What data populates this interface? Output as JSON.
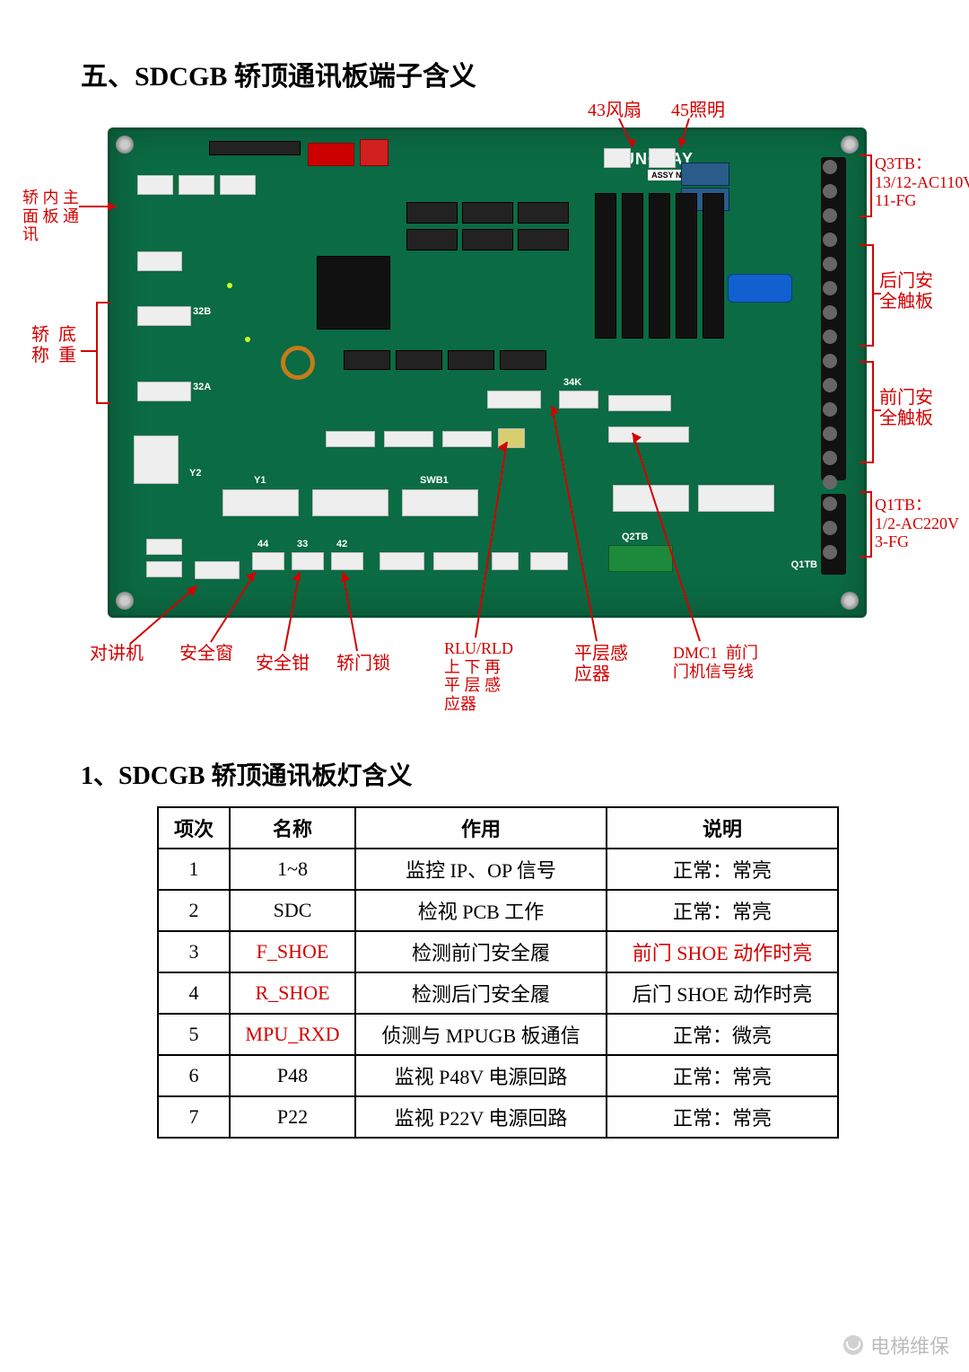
{
  "title": "五、SDCGB 轿顶通讯板端子含义",
  "subtitle": "1、SDCGB 轿顶通讯板灯含义",
  "annotations": {
    "top": {
      "a43": "43风扇",
      "a45": "45照明"
    },
    "left": {
      "nei": "轿 内 主\n面 板 通\n讯",
      "di": "轿  底\n称  重"
    },
    "right": {
      "q3tb": "Q3TB：\n13/12-AC110V\n11-FG",
      "rear": "后门安\n全触板",
      "front": "前门安\n全触板",
      "q1tb": "Q1TB：\n1/2-AC220V\n3-FG"
    },
    "bottom": {
      "intercom": "对讲机",
      "safetywin": "安全窗",
      "safetyclamp": "安全钳",
      "doorlock": "轿门锁",
      "rlu": "RLU/RLD\n上 下 再\n平 层 感\n应器",
      "level": "平层感\n应器",
      "dmc1": "DMC1  前门\n门机信号线"
    }
  },
  "pcb": {
    "brand": "YUNGTAY",
    "silk": {
      "a44": "44",
      "a33": "33",
      "a42": "42",
      "swb1": "SWB1",
      "a34k": "34K",
      "q1tb": "Q1TB",
      "q2tb": "Q2TB",
      "a32a": "32A",
      "a32b": "32B",
      "y1": "Y1",
      "y2": "Y2"
    }
  },
  "table": {
    "columns": [
      "项次",
      "名称",
      "作用",
      "说明"
    ],
    "rows": [
      {
        "n": "1",
        "name": "1~8",
        "use": "监控 IP、OP 信号",
        "desc": "正常：常亮",
        "red": false
      },
      {
        "n": "2",
        "name": "SDC",
        "use": "检视 PCB 工作",
        "desc": "正常：常亮",
        "red": false
      },
      {
        "n": "3",
        "name": "F_SHOE",
        "use": "检测前门安全履",
        "desc": "前门 SHOE 动作时亮",
        "red": true
      },
      {
        "n": "4",
        "name": "R_SHOE",
        "use": "检测后门安全履",
        "desc": "后门 SHOE 动作时亮",
        "red": false,
        "namered": true
      },
      {
        "n": "5",
        "name": "MPU_RXD",
        "use": "侦测与 MPUGB 板通信",
        "desc": "正常：微亮",
        "red": false,
        "namered": true
      },
      {
        "n": "6",
        "name": "P48",
        "use": "监视 P48V 电源回路",
        "desc": "正常：常亮",
        "red": false
      },
      {
        "n": "7",
        "name": "P22",
        "use": "监视 P22V 电源回路",
        "desc": "正常：常亮",
        "red": false
      }
    ]
  },
  "watermark": "电梯维保",
  "colors": {
    "label": "#d40000",
    "pcb": "#0b6b44"
  }
}
